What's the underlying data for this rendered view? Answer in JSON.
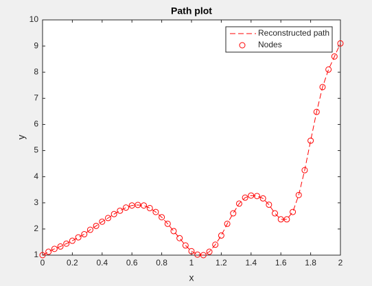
{
  "chart_data": {
    "type": "line",
    "title": "Path plot",
    "x_label": "x",
    "y_label": "y",
    "x": [
      0,
      0.04,
      0.08,
      0.12,
      0.16,
      0.2,
      0.24,
      0.28,
      0.32,
      0.36,
      0.4,
      0.44,
      0.48,
      0.52,
      0.56,
      0.6,
      0.64,
      0.68,
      0.72,
      0.76,
      0.8,
      0.84,
      0.88,
      0.92,
      0.96,
      1.0,
      1.04,
      1.08,
      1.12,
      1.16,
      1.2,
      1.24,
      1.28,
      1.32,
      1.36,
      1.4,
      1.44,
      1.48,
      1.52,
      1.56,
      1.6,
      1.64,
      1.68,
      1.72,
      1.76,
      1.8,
      1.84,
      1.88,
      1.92,
      1.96,
      2.0
    ],
    "series": [
      {
        "name": "Reconstructed path",
        "color": "#ff0000",
        "style": "dashed",
        "values": [
          1.0,
          1.13,
          1.24,
          1.33,
          1.44,
          1.55,
          1.68,
          1.8,
          1.97,
          2.12,
          2.28,
          2.42,
          2.57,
          2.7,
          2.82,
          2.9,
          2.92,
          2.9,
          2.8,
          2.65,
          2.45,
          2.2,
          1.92,
          1.65,
          1.37,
          1.15,
          1.02,
          1.0,
          1.13,
          1.4,
          1.75,
          2.2,
          2.6,
          2.97,
          3.2,
          3.28,
          3.26,
          3.17,
          2.93,
          2.6,
          2.37,
          2.37,
          2.65,
          3.3,
          4.25,
          5.38,
          6.48,
          7.43,
          8.1,
          8.6,
          9.1
        ]
      },
      {
        "name": "Nodes",
        "color": "#ff0000",
        "style": "markers",
        "values": [
          1.0,
          1.13,
          1.24,
          1.33,
          1.44,
          1.55,
          1.68,
          1.8,
          1.97,
          2.12,
          2.28,
          2.42,
          2.57,
          2.7,
          2.82,
          2.9,
          2.92,
          2.9,
          2.8,
          2.65,
          2.45,
          2.2,
          1.92,
          1.65,
          1.37,
          1.15,
          1.02,
          1.0,
          1.13,
          1.4,
          1.75,
          2.2,
          2.6,
          2.97,
          3.2,
          3.28,
          3.26,
          3.17,
          2.93,
          2.6,
          2.37,
          2.37,
          2.65,
          3.3,
          4.25,
          5.38,
          6.48,
          7.43,
          8.1,
          8.6,
          9.1
        ]
      }
    ],
    "xlim": [
      0,
      2
    ],
    "ylim": [
      1,
      10
    ],
    "xticks": [
      0,
      0.2,
      0.4,
      0.6,
      0.8,
      1,
      1.2,
      1.4,
      1.6,
      1.8,
      2
    ],
    "yticks": [
      1,
      2,
      3,
      4,
      5,
      6,
      7,
      8,
      9,
      10
    ],
    "grid": false,
    "legend": "northeast"
  }
}
